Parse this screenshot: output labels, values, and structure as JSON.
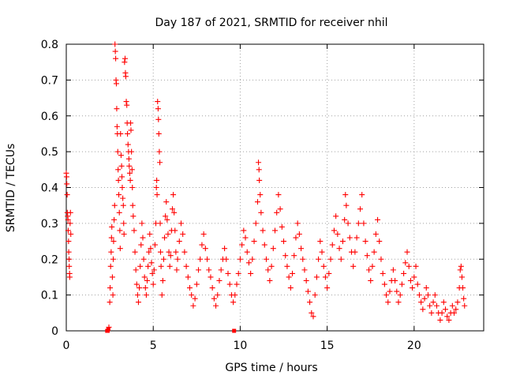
{
  "chart_data": {
    "type": "scatter",
    "title": "Day 187 of 2021, SRMTID for receiver nhil",
    "xlabel": "GPS time / hours",
    "ylabel": "SRMTID / TECUs",
    "xlim": [
      0,
      24
    ],
    "ylim": [
      0,
      0.8
    ],
    "xticks": [
      0,
      5,
      10,
      15,
      20
    ],
    "yticks": [
      0,
      0.1,
      0.2,
      0.3,
      0.4,
      0.5,
      0.6,
      0.7,
      0.8
    ],
    "xtick_labels": [
      "0",
      "5",
      "10",
      "15",
      "20"
    ],
    "ytick_labels": [
      "0",
      "0.1",
      "0.2",
      "0.3",
      "0.4",
      "0.5",
      "0.6",
      "0.7",
      "0.8"
    ],
    "grid": true,
    "marker": "+",
    "color": "#ff0000",
    "series": [
      {
        "name": "SRMTID",
        "points": [
          [
            0.0,
            0.44
          ],
          [
            0.02,
            0.43
          ],
          [
            0.03,
            0.41
          ],
          [
            0.05,
            0.38
          ],
          [
            0.06,
            0.33
          ],
          [
            0.08,
            0.32
          ],
          [
            0.1,
            0.31
          ],
          [
            0.11,
            0.28
          ],
          [
            0.13,
            0.25
          ],
          [
            0.14,
            0.22
          ],
          [
            0.16,
            0.2
          ],
          [
            0.17,
            0.18
          ],
          [
            0.19,
            0.16
          ],
          [
            0.2,
            0.15
          ],
          [
            0.22,
            0.3
          ],
          [
            0.24,
            0.33
          ],
          [
            0.26,
            0.27
          ],
          [
            2.35,
            0.0
          ],
          [
            2.38,
            0.0
          ],
          [
            2.42,
            0.005
          ],
          [
            2.45,
            0.01
          ],
          [
            2.5,
            0.08
          ],
          [
            2.52,
            0.12
          ],
          [
            2.55,
            0.18
          ],
          [
            2.58,
            0.22
          ],
          [
            2.6,
            0.26
          ],
          [
            2.62,
            0.29
          ],
          [
            2.65,
            0.15
          ],
          [
            2.68,
            0.1
          ],
          [
            2.7,
            0.2
          ],
          [
            2.72,
            0.25
          ],
          [
            2.75,
            0.31
          ],
          [
            2.78,
            0.35
          ],
          [
            2.8,
            0.8
          ],
          [
            2.82,
            0.78
          ],
          [
            2.84,
            0.76
          ],
          [
            2.86,
            0.7
          ],
          [
            2.88,
            0.69
          ],
          [
            2.9,
            0.62
          ],
          [
            2.92,
            0.57
          ],
          [
            2.94,
            0.55
          ],
          [
            2.96,
            0.5
          ],
          [
            2.98,
            0.45
          ],
          [
            3.0,
            0.42
          ],
          [
            3.02,
            0.38
          ],
          [
            3.05,
            0.33
          ],
          [
            3.08,
            0.28
          ],
          [
            3.1,
            0.23
          ],
          [
            3.12,
            0.55
          ],
          [
            3.15,
            0.49
          ],
          [
            3.18,
            0.46
          ],
          [
            3.2,
            0.43
          ],
          [
            3.22,
            0.4
          ],
          [
            3.25,
            0.37
          ],
          [
            3.28,
            0.35
          ],
          [
            3.3,
            0.3
          ],
          [
            3.32,
            0.27
          ],
          [
            3.35,
            0.75
          ],
          [
            3.38,
            0.76
          ],
          [
            3.4,
            0.72
          ],
          [
            3.42,
            0.71
          ],
          [
            3.45,
            0.64
          ],
          [
            3.48,
            0.63
          ],
          [
            3.5,
            0.58
          ],
          [
            3.52,
            0.55
          ],
          [
            3.55,
            0.52
          ],
          [
            3.58,
            0.5
          ],
          [
            3.6,
            0.48
          ],
          [
            3.62,
            0.46
          ],
          [
            3.65,
            0.44
          ],
          [
            3.68,
            0.42
          ],
          [
            3.7,
            0.58
          ],
          [
            3.72,
            0.56
          ],
          [
            3.75,
            0.5
          ],
          [
            3.78,
            0.45
          ],
          [
            3.8,
            0.4
          ],
          [
            3.82,
            0.35
          ],
          [
            3.85,
            0.32
          ],
          [
            3.9,
            0.28
          ],
          [
            3.95,
            0.22
          ],
          [
            4.0,
            0.17
          ],
          [
            4.05,
            0.13
          ],
          [
            4.1,
            0.1
          ],
          [
            4.15,
            0.08
          ],
          [
            4.2,
            0.12
          ],
          [
            4.25,
            0.18
          ],
          [
            4.3,
            0.24
          ],
          [
            4.35,
            0.3
          ],
          [
            4.4,
            0.26
          ],
          [
            4.45,
            0.2
          ],
          [
            4.5,
            0.15
          ],
          [
            4.55,
            0.12
          ],
          [
            4.6,
            0.1
          ],
          [
            4.65,
            0.14
          ],
          [
            4.7,
            0.18
          ],
          [
            4.75,
            0.22
          ],
          [
            4.8,
            0.27
          ],
          [
            4.85,
            0.23
          ],
          [
            4.9,
            0.19
          ],
          [
            4.95,
            0.16
          ],
          [
            5.0,
            0.13
          ],
          [
            5.05,
            0.17
          ],
          [
            5.1,
            0.24
          ],
          [
            5.15,
            0.3
          ],
          [
            5.18,
            0.4
          ],
          [
            5.2,
            0.42
          ],
          [
            5.22,
            0.38
          ],
          [
            5.25,
            0.64
          ],
          [
            5.28,
            0.62
          ],
          [
            5.3,
            0.59
          ],
          [
            5.32,
            0.55
          ],
          [
            5.35,
            0.5
          ],
          [
            5.38,
            0.47
          ],
          [
            5.4,
            0.3
          ],
          [
            5.42,
            0.22
          ],
          [
            5.45,
            0.18
          ],
          [
            5.5,
            0.1
          ],
          [
            5.55,
            0.14
          ],
          [
            5.6,
            0.2
          ],
          [
            5.65,
            0.26
          ],
          [
            5.7,
            0.32
          ],
          [
            5.75,
            0.36
          ],
          [
            5.8,
            0.31
          ],
          [
            5.85,
            0.27
          ],
          [
            5.9,
            0.22
          ],
          [
            5.95,
            0.18
          ],
          [
            6.0,
            0.21
          ],
          [
            6.05,
            0.28
          ],
          [
            6.1,
            0.34
          ],
          [
            6.15,
            0.38
          ],
          [
            6.2,
            0.33
          ],
          [
            6.25,
            0.28
          ],
          [
            6.3,
            0.22
          ],
          [
            6.35,
            0.17
          ],
          [
            6.4,
            0.2
          ],
          [
            6.5,
            0.25
          ],
          [
            6.6,
            0.3
          ],
          [
            6.7,
            0.27
          ],
          [
            6.8,
            0.22
          ],
          [
            6.9,
            0.18
          ],
          [
            7.0,
            0.15
          ],
          [
            7.1,
            0.12
          ],
          [
            7.2,
            0.1
          ],
          [
            7.3,
            0.07
          ],
          [
            7.4,
            0.09
          ],
          [
            7.5,
            0.13
          ],
          [
            7.6,
            0.17
          ],
          [
            7.7,
            0.2
          ],
          [
            7.8,
            0.24
          ],
          [
            7.9,
            0.27
          ],
          [
            8.0,
            0.23
          ],
          [
            8.1,
            0.2
          ],
          [
            8.2,
            0.17
          ],
          [
            8.3,
            0.15
          ],
          [
            8.4,
            0.12
          ],
          [
            8.5,
            0.09
          ],
          [
            8.6,
            0.07
          ],
          [
            8.7,
            0.1
          ],
          [
            8.8,
            0.14
          ],
          [
            8.9,
            0.17
          ],
          [
            9.0,
            0.2
          ],
          [
            9.1,
            0.23
          ],
          [
            9.2,
            0.2
          ],
          [
            9.3,
            0.16
          ],
          [
            9.4,
            0.13
          ],
          [
            9.5,
            0.1
          ],
          [
            9.6,
            0.08
          ],
          [
            9.65,
            0.0
          ],
          [
            9.7,
            0.1
          ],
          [
            9.8,
            0.13
          ],
          [
            9.9,
            0.16
          ],
          [
            10.0,
            0.2
          ],
          [
            10.1,
            0.24
          ],
          [
            10.2,
            0.28
          ],
          [
            10.3,
            0.26
          ],
          [
            10.4,
            0.22
          ],
          [
            10.5,
            0.19
          ],
          [
            10.6,
            0.16
          ],
          [
            10.7,
            0.2
          ],
          [
            10.8,
            0.25
          ],
          [
            10.9,
            0.3
          ],
          [
            11.0,
            0.36
          ],
          [
            11.05,
            0.47
          ],
          [
            11.08,
            0.45
          ],
          [
            11.1,
            0.42
          ],
          [
            11.15,
            0.38
          ],
          [
            11.2,
            0.33
          ],
          [
            11.3,
            0.28
          ],
          [
            11.4,
            0.24
          ],
          [
            11.5,
            0.2
          ],
          [
            11.6,
            0.17
          ],
          [
            11.7,
            0.14
          ],
          [
            11.8,
            0.18
          ],
          [
            11.9,
            0.23
          ],
          [
            12.0,
            0.28
          ],
          [
            12.1,
            0.33
          ],
          [
            12.2,
            0.38
          ],
          [
            12.3,
            0.34
          ],
          [
            12.4,
            0.29
          ],
          [
            12.5,
            0.25
          ],
          [
            12.6,
            0.21
          ],
          [
            12.7,
            0.18
          ],
          [
            12.8,
            0.15
          ],
          [
            12.9,
            0.12
          ],
          [
            13.0,
            0.16
          ],
          [
            13.1,
            0.21
          ],
          [
            13.2,
            0.26
          ],
          [
            13.3,
            0.3
          ],
          [
            13.4,
            0.27
          ],
          [
            13.5,
            0.23
          ],
          [
            13.6,
            0.2
          ],
          [
            13.7,
            0.17
          ],
          [
            13.8,
            0.14
          ],
          [
            13.9,
            0.11
          ],
          [
            14.0,
            0.08
          ],
          [
            14.1,
            0.05
          ],
          [
            14.2,
            0.04
          ],
          [
            14.3,
            0.1
          ],
          [
            14.4,
            0.15
          ],
          [
            14.5,
            0.2
          ],
          [
            14.6,
            0.25
          ],
          [
            14.7,
            0.22
          ],
          [
            14.8,
            0.18
          ],
          [
            14.9,
            0.15
          ],
          [
            15.0,
            0.12
          ],
          [
            15.1,
            0.16
          ],
          [
            15.2,
            0.2
          ],
          [
            15.3,
            0.24
          ],
          [
            15.4,
            0.28
          ],
          [
            15.5,
            0.32
          ],
          [
            15.6,
            0.27
          ],
          [
            15.7,
            0.23
          ],
          [
            15.8,
            0.2
          ],
          [
            15.9,
            0.25
          ],
          [
            16.0,
            0.31
          ],
          [
            16.05,
            0.38
          ],
          [
            16.1,
            0.35
          ],
          [
            16.2,
            0.3
          ],
          [
            16.3,
            0.26
          ],
          [
            16.4,
            0.22
          ],
          [
            16.5,
            0.18
          ],
          [
            16.6,
            0.22
          ],
          [
            16.7,
            0.26
          ],
          [
            16.8,
            0.3
          ],
          [
            16.9,
            0.34
          ],
          [
            17.0,
            0.38
          ],
          [
            17.1,
            0.3
          ],
          [
            17.2,
            0.25
          ],
          [
            17.3,
            0.21
          ],
          [
            17.4,
            0.17
          ],
          [
            17.5,
            0.14
          ],
          [
            17.6,
            0.18
          ],
          [
            17.7,
            0.22
          ],
          [
            17.8,
            0.27
          ],
          [
            17.9,
            0.31
          ],
          [
            18.0,
            0.25
          ],
          [
            18.1,
            0.2
          ],
          [
            18.2,
            0.16
          ],
          [
            18.3,
            0.13
          ],
          [
            18.4,
            0.1
          ],
          [
            18.5,
            0.08
          ],
          [
            18.6,
            0.11
          ],
          [
            18.7,
            0.14
          ],
          [
            18.8,
            0.17
          ],
          [
            18.9,
            0.14
          ],
          [
            19.0,
            0.11
          ],
          [
            19.1,
            0.08
          ],
          [
            19.2,
            0.1
          ],
          [
            19.3,
            0.13
          ],
          [
            19.4,
            0.16
          ],
          [
            19.5,
            0.19
          ],
          [
            19.6,
            0.22
          ],
          [
            19.7,
            0.18
          ],
          [
            19.8,
            0.14
          ],
          [
            19.9,
            0.12
          ],
          [
            20.0,
            0.15
          ],
          [
            20.1,
            0.18
          ],
          [
            20.2,
            0.13
          ],
          [
            20.3,
            0.1
          ],
          [
            20.4,
            0.08
          ],
          [
            20.5,
            0.06
          ],
          [
            20.6,
            0.09
          ],
          [
            20.7,
            0.12
          ],
          [
            20.8,
            0.1
          ],
          [
            20.9,
            0.07
          ],
          [
            21.0,
            0.05
          ],
          [
            21.1,
            0.08
          ],
          [
            21.2,
            0.1
          ],
          [
            21.3,
            0.07
          ],
          [
            21.4,
            0.05
          ],
          [
            21.5,
            0.03
          ],
          [
            21.6,
            0.05
          ],
          [
            21.7,
            0.08
          ],
          [
            21.8,
            0.06
          ],
          [
            21.9,
            0.04
          ],
          [
            22.0,
            0.03
          ],
          [
            22.1,
            0.05
          ],
          [
            22.2,
            0.07
          ],
          [
            22.3,
            0.05
          ],
          [
            22.4,
            0.06
          ],
          [
            22.5,
            0.08
          ],
          [
            22.6,
            0.12
          ],
          [
            22.65,
            0.17
          ],
          [
            22.7,
            0.18
          ],
          [
            22.75,
            0.15
          ],
          [
            22.8,
            0.12
          ],
          [
            22.85,
            0.09
          ],
          [
            22.9,
            0.07
          ]
        ]
      }
    ]
  }
}
